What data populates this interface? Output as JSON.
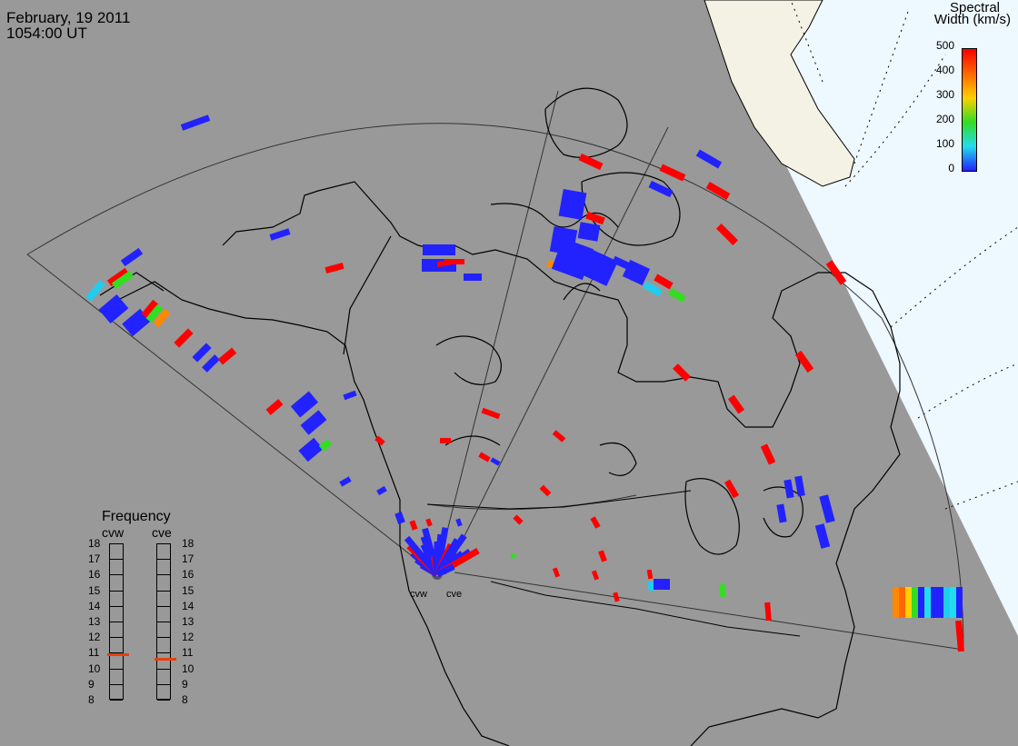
{
  "header": {
    "date": "February, 19 2011",
    "time": "1054:00 UT"
  },
  "colorbar": {
    "title_line1": "Spectral",
    "title_line2": "Width (km/s)",
    "ticks": [
      "500",
      "400",
      "300",
      "200",
      "100",
      "0"
    ],
    "colors": [
      "#ff0000",
      "#ff6600",
      "#ffd000",
      "#33dd22",
      "#22ddee",
      "#2222ff"
    ]
  },
  "frequency": {
    "title": "Frequency",
    "radars": [
      "cvw",
      "cve"
    ],
    "scale": [
      "18",
      "17",
      "16",
      "15",
      "14",
      "13",
      "12",
      "11",
      "10",
      "9",
      "8"
    ],
    "cvw_value": 10.9,
    "cve_value": 10.6
  },
  "sites": {
    "west": "cvw",
    "east": "cve"
  },
  "colors": {
    "background": "#999999",
    "sea_ice": "#eef8ff",
    "land_ice": "#f4f2e4",
    "frequency_marker": "#e8400c"
  }
}
